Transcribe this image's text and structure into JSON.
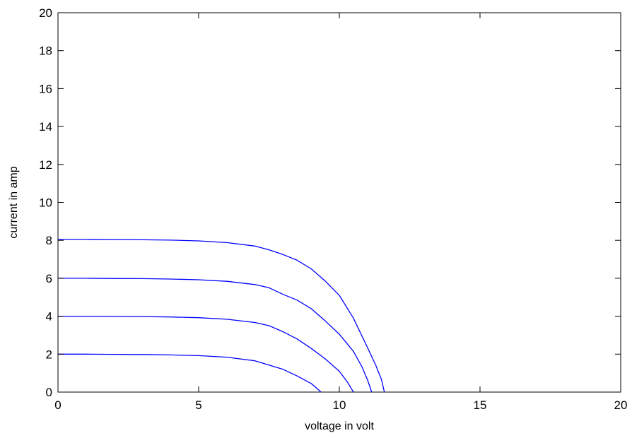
{
  "chart_data": {
    "type": "line",
    "title": "",
    "xlabel": "voltage in volt",
    "ylabel": "current in amp",
    "xlim": [
      0,
      20
    ],
    "ylim": [
      0,
      20
    ],
    "xticks": [
      0,
      5,
      10,
      15,
      20
    ],
    "yticks": [
      0,
      2,
      4,
      6,
      8,
      10,
      12,
      14,
      16,
      18,
      20
    ],
    "grid": false,
    "legend": "none",
    "line_color": "#0000ff",
    "series": [
      {
        "x": [
          0,
          1,
          2,
          3,
          4,
          5,
          6,
          7,
          8,
          8.5,
          9,
          9.2,
          9.35
        ],
        "y": [
          2.0,
          2.0,
          1.99,
          1.98,
          1.96,
          1.92,
          1.84,
          1.65,
          1.2,
          0.85,
          0.45,
          0.2,
          0
        ]
      },
      {
        "x": [
          0,
          1,
          2,
          3,
          4,
          5,
          6,
          7,
          7.5,
          8,
          8.5,
          9,
          9.5,
          10,
          10.3,
          10.5
        ],
        "y": [
          4.0,
          4.0,
          3.99,
          3.98,
          3.96,
          3.92,
          3.84,
          3.67,
          3.5,
          3.18,
          2.8,
          2.3,
          1.75,
          1.1,
          0.5,
          0
        ]
      },
      {
        "x": [
          0,
          1,
          2,
          3,
          4,
          5,
          6,
          7,
          7.5,
          8,
          8.5,
          9,
          9.5,
          10,
          10.5,
          10.8,
          11.0,
          11.15
        ],
        "y": [
          6.0,
          6.0,
          5.99,
          5.98,
          5.96,
          5.92,
          5.84,
          5.67,
          5.5,
          5.15,
          4.85,
          4.4,
          3.75,
          3.05,
          2.15,
          1.35,
          0.65,
          0
        ]
      },
      {
        "x": [
          0,
          1,
          2,
          3,
          4,
          5,
          6,
          7,
          7.5,
          8,
          8.5,
          9,
          9.5,
          10,
          10.5,
          11,
          11.3,
          11.5,
          11.6
        ],
        "y": [
          8.05,
          8.05,
          8.04,
          8.03,
          8.01,
          7.97,
          7.88,
          7.7,
          7.5,
          7.25,
          6.95,
          6.5,
          5.85,
          5.1,
          3.9,
          2.35,
          1.4,
          0.65,
          0
        ]
      }
    ]
  }
}
